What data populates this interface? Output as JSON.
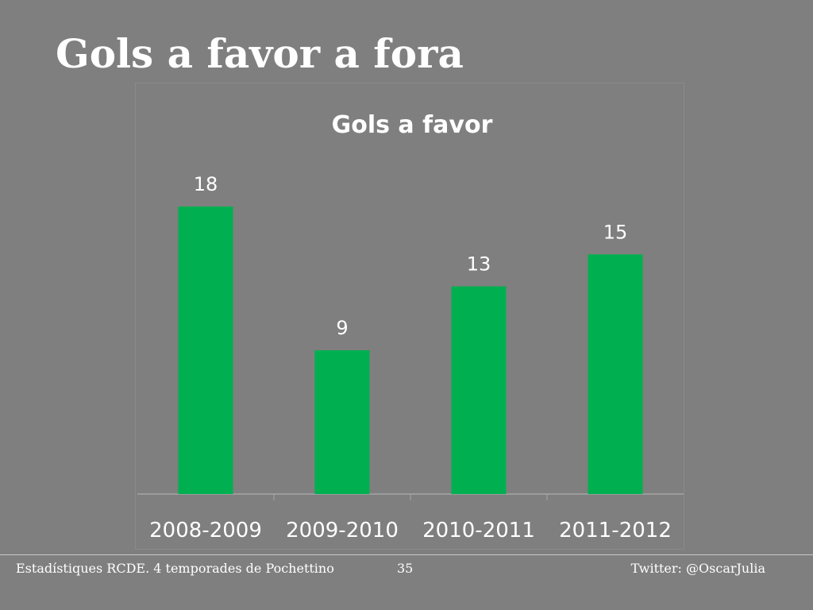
{
  "slide": {
    "title": "Gols a favor a fora"
  },
  "footer": {
    "left": "Estadístiques RCDE. 4 temporades de Pochettino",
    "page_number": "35",
    "right": "Twitter: @OscarJulia"
  },
  "colors": {
    "background": "#7f7f7f",
    "bar": "#00b050",
    "text": "#ffffff"
  },
  "chart_data": {
    "type": "bar",
    "title": "Gols a favor",
    "categories": [
      "2008-2009",
      "2009-2010",
      "2010-2011",
      "2011-2012"
    ],
    "values": [
      18,
      9,
      13,
      15
    ],
    "data_labels": [
      "18",
      "9",
      "13",
      "15"
    ],
    "xlabel": "",
    "ylabel": "",
    "ylim": [
      0,
      18
    ],
    "grid": false,
    "legend": "none"
  }
}
